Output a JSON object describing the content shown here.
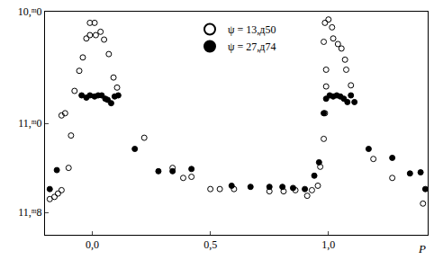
{
  "chart_data": {
    "type": "scatter",
    "xlabel": "P",
    "xlim": [
      -0.2,
      1.42
    ],
    "xticks": [
      {
        "value": 0.0,
        "label": "0,0"
      },
      {
        "value": 0.5,
        "label": "0,5"
      },
      {
        "value": 1.0,
        "label": "1,0"
      }
    ],
    "ylim": [
      12.0,
      10.0
    ],
    "yticks": [
      {
        "value": 10.0,
        "label": "10,ᵐ0"
      },
      {
        "value": 11.0,
        "label": "11,ᵐ0"
      },
      {
        "value": 11.8,
        "label": "11,ᵐ8"
      }
    ],
    "grid": false,
    "legend": "top",
    "series": [
      {
        "name": "ψ = 13,д50",
        "color": "#000000",
        "marker": "open",
        "x": [
          -0.18,
          -0.16,
          -0.145,
          -0.13,
          -0.1,
          -0.09,
          -0.13,
          -0.115,
          -0.075,
          -0.055,
          -0.04,
          -0.025,
          -0.01,
          -0.01,
          0.01,
          0.015,
          0.035,
          0.05,
          0.07,
          0.09,
          0.105,
          0.22,
          0.34,
          0.385,
          0.42,
          0.5,
          0.54,
          0.6,
          0.75,
          0.81,
          0.86,
          0.91,
          0.93,
          0.955,
          0.965,
          0.98,
          0.985,
          0.99,
          0.99,
          0.98,
          0.985,
          1.0,
          1.015,
          1.02,
          1.04,
          1.055,
          1.07,
          1.075,
          1.095,
          1.19,
          1.27,
          1.4
        ],
        "values": [
          11.68,
          11.66,
          11.63,
          11.6,
          11.4,
          11.11,
          10.93,
          10.91,
          10.71,
          10.53,
          10.41,
          10.24,
          10.21,
          10.1,
          10.1,
          10.21,
          10.18,
          10.25,
          10.38,
          10.59,
          10.68,
          11.13,
          11.4,
          11.49,
          11.48,
          11.59,
          11.59,
          11.59,
          11.61,
          11.61,
          11.6,
          11.65,
          11.6,
          11.56,
          11.39,
          11.14,
          10.91,
          10.67,
          10.52,
          10.27,
          10.1,
          10.07,
          10.14,
          10.24,
          10.29,
          10.33,
          10.43,
          10.52,
          10.66,
          11.32,
          11.49,
          11.72
        ]
      },
      {
        "name": "ψ = 27,д74",
        "color": "#000000",
        "marker": "filled",
        "x": [
          -0.18,
          -0.15,
          -0.045,
          -0.025,
          -0.01,
          0.01,
          0.025,
          0.04,
          0.055,
          0.065,
          0.08,
          0.095,
          0.11,
          0.18,
          0.28,
          0.34,
          0.42,
          0.59,
          0.67,
          0.75,
          0.805,
          0.85,
          0.9,
          0.94,
          0.96,
          0.98,
          0.99,
          1.005,
          1.02,
          1.035,
          1.05,
          1.065,
          1.08,
          1.095,
          1.11,
          1.17,
          1.27,
          1.345,
          1.39,
          1.41
        ],
        "values": [
          11.59,
          11.42,
          10.75,
          10.77,
          10.75,
          10.76,
          10.75,
          10.75,
          10.78,
          10.79,
          10.82,
          10.76,
          10.75,
          11.23,
          11.43,
          11.43,
          11.41,
          11.56,
          11.57,
          11.57,
          11.57,
          11.58,
          11.59,
          11.47,
          11.35,
          10.91,
          10.78,
          10.75,
          10.76,
          10.75,
          10.76,
          10.78,
          10.81,
          10.75,
          10.81,
          11.23,
          11.31,
          11.45,
          11.44,
          11.59
        ]
      }
    ]
  }
}
